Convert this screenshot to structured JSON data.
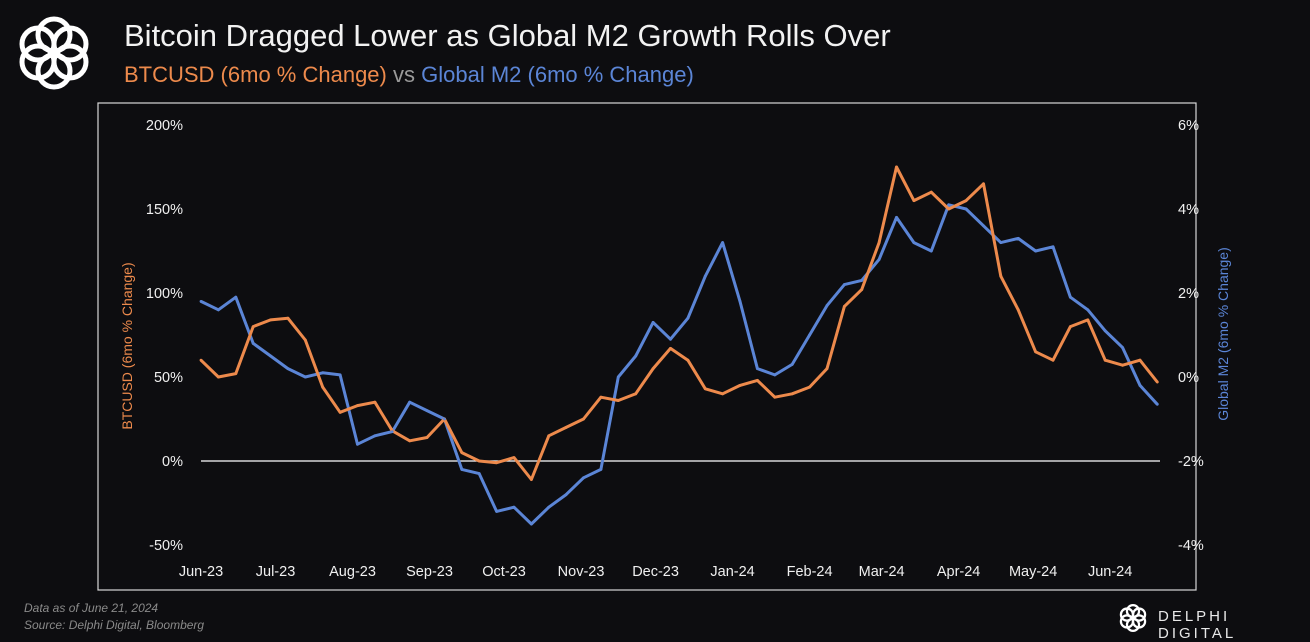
{
  "header": {
    "title": "Bitcoin Dragged Lower as Global M2 Growth Rolls Over",
    "subtitle_btc": "BTCUSD (6mo % Change)",
    "subtitle_vs": "vs",
    "subtitle_m2": "Global M2 (6mo % Change)"
  },
  "footer": {
    "data_as_of": "Data as of June 21, 2024",
    "source": "Source: Delphi Digital, Bloomberg",
    "brand": "DELPHI DIGITAL"
  },
  "colors": {
    "btc": "#ed8a4c",
    "m2": "#5b85d6",
    "background": "#0d0d10",
    "zero_line": "#ffffff"
  },
  "chart_data": {
    "type": "line",
    "title": "Bitcoin Dragged Lower as Global M2 Growth Rolls Over",
    "ylabel": "BTCUSD (6mo % Change)",
    "y2label": "Global M2 (6mo % Change)",
    "ylim": [
      -50,
      200
    ],
    "y2lim": [
      -4,
      6
    ],
    "yticks": [
      "-50%",
      "0%",
      "50%",
      "100%",
      "150%",
      "200%"
    ],
    "y2ticks": [
      "-4%",
      "-2%",
      "0%",
      "2%",
      "4%",
      "6%"
    ],
    "xticks": [
      "Jun-23",
      "Jul-23",
      "Aug-23",
      "Sep-23",
      "Oct-23",
      "Nov-23",
      "Dec-23",
      "Jan-24",
      "Feb-24",
      "Mar-24",
      "Apr-24",
      "May-24",
      "Jun-24"
    ],
    "xtick_dates": [
      "2023-06-01",
      "2023-07-01",
      "2023-08-01",
      "2023-09-01",
      "2023-10-01",
      "2023-11-01",
      "2023-12-01",
      "2024-01-01",
      "2024-02-01",
      "2024-03-01",
      "2024-04-01",
      "2024-05-01",
      "2024-06-01"
    ],
    "grid": false,
    "zero_line": true,
    "dates": [
      "2023-06-01",
      "2023-06-08",
      "2023-06-15",
      "2023-06-22",
      "2023-06-29",
      "2023-07-06",
      "2023-07-13",
      "2023-07-20",
      "2023-07-27",
      "2023-08-03",
      "2023-08-10",
      "2023-08-17",
      "2023-08-24",
      "2023-08-31",
      "2023-09-07",
      "2023-09-14",
      "2023-09-21",
      "2023-09-28",
      "2023-10-05",
      "2023-10-12",
      "2023-10-19",
      "2023-10-26",
      "2023-11-02",
      "2023-11-09",
      "2023-11-16",
      "2023-11-23",
      "2023-11-30",
      "2023-12-07",
      "2023-12-14",
      "2023-12-21",
      "2023-12-28",
      "2024-01-04",
      "2024-01-11",
      "2024-01-18",
      "2024-01-25",
      "2024-02-01",
      "2024-02-08",
      "2024-02-15",
      "2024-02-22",
      "2024-02-29",
      "2024-03-07",
      "2024-03-14",
      "2024-03-21",
      "2024-03-28",
      "2024-04-04",
      "2024-04-11",
      "2024-04-18",
      "2024-04-25",
      "2024-05-02",
      "2024-05-09",
      "2024-05-16",
      "2024-05-23",
      "2024-05-30",
      "2024-06-06",
      "2024-06-13",
      "2024-06-20"
    ],
    "series": [
      {
        "name": "BTCUSD (6mo % Change)",
        "axis": "left",
        "color": "#ed8a4c",
        "values": [
          60,
          50,
          52,
          80,
          84,
          85,
          72,
          44,
          29,
          33,
          35,
          18,
          12,
          14,
          25,
          5,
          0,
          -1,
          2,
          -11,
          15,
          20,
          25,
          38,
          36,
          40,
          55,
          67,
          60,
          43,
          40,
          45,
          48,
          38,
          40,
          44,
          55,
          92,
          102,
          130,
          175,
          155,
          160,
          150,
          155,
          165,
          110,
          90,
          65,
          60,
          80,
          84,
          60,
          57,
          60,
          47
        ]
      },
      {
        "name": "Global M2 (6mo % Change)",
        "axis": "right",
        "color": "#5b85d6",
        "values": [
          1.8,
          1.6,
          1.9,
          0.8,
          0.5,
          0.2,
          0.0,
          0.1,
          0.05,
          -1.6,
          -1.4,
          -1.3,
          -0.6,
          -0.8,
          -1.0,
          -2.2,
          -2.3,
          -3.2,
          -3.1,
          -3.5,
          -3.1,
          -2.8,
          -2.4,
          -2.2,
          0.0,
          0.5,
          1.3,
          0.9,
          1.4,
          2.4,
          3.2,
          1.8,
          0.2,
          0.05,
          0.3,
          1.0,
          1.7,
          2.2,
          2.3,
          2.8,
          3.8,
          3.2,
          3.0,
          4.1,
          4.0,
          3.6,
          3.2,
          3.3,
          3.0,
          3.1,
          1.9,
          1.6,
          1.1,
          0.7,
          -0.2,
          -0.65
        ]
      }
    ]
  }
}
